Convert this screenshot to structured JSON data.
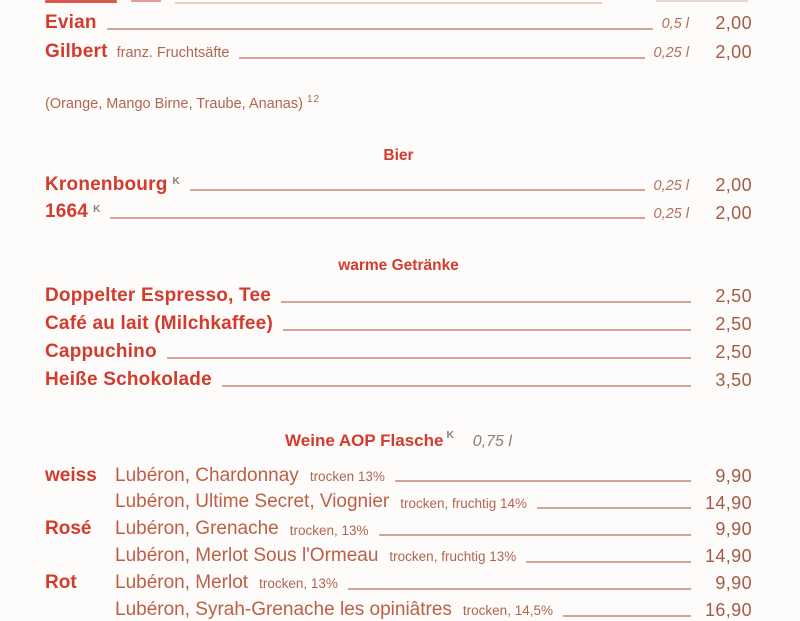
{
  "drinks": {
    "rows": [
      {
        "name": "Evian",
        "vol": "0,5 l",
        "price": "2,00"
      },
      {
        "name": "Gilbert",
        "desc": "franz. Fruchtsäfte",
        "vol": "0,25 l",
        "price": "2,00"
      }
    ],
    "note": "(Orange, Mango Birne, Traube, Ananas)",
    "note_sup": "12"
  },
  "bier": {
    "header": "Bier",
    "rows": [
      {
        "name": "Kronenbourg",
        "sup": "K",
        "vol": "0,25 l",
        "price": "2,00"
      },
      {
        "name": "1664",
        "sup": "K",
        "vol": "0,25 l",
        "price": "2,00"
      }
    ]
  },
  "warme": {
    "header": "warme Getränke",
    "rows": [
      {
        "name": "Doppelter Espresso, Tee",
        "price": "2,50"
      },
      {
        "name": "Café au lait (Milchkaffee)",
        "price": "2,50"
      },
      {
        "name": "Cappuchino",
        "price": "2,50"
      },
      {
        "name": "Heiße Schokolade",
        "price": "3,50"
      }
    ]
  },
  "weine": {
    "header": "Weine AOP Flasche",
    "header_sup": "K",
    "header_vol": "0,75 l",
    "rows": [
      {
        "cat": "weiss",
        "name": "Lubéron, Chardonnay",
        "detail": "trocken 13%",
        "price": "9,90"
      },
      {
        "cat": "",
        "name": "Lubéron, Ultime Secret, Viognier",
        "detail": "trocken, fruchtig 14%",
        "price": "14,90"
      },
      {
        "cat": "Rosé",
        "name": "Lubéron, Grenache",
        "detail": "trocken, 13%",
        "price": "9,90"
      },
      {
        "cat": "",
        "name": "Lubéron, Merlot Sous l'Ormeau",
        "detail": "trocken, fruchtig 13%",
        "price": "14,90"
      },
      {
        "cat": "Rot",
        "name": "Lubéron, Merlot",
        "detail": "trocken, 13%",
        "price": "9,90"
      },
      {
        "cat": "",
        "name": "Lubéron, Syrah-Grenache les opiniâtres",
        "detail": "trocken, 14,5%",
        "price": "16,90"
      }
    ]
  }
}
